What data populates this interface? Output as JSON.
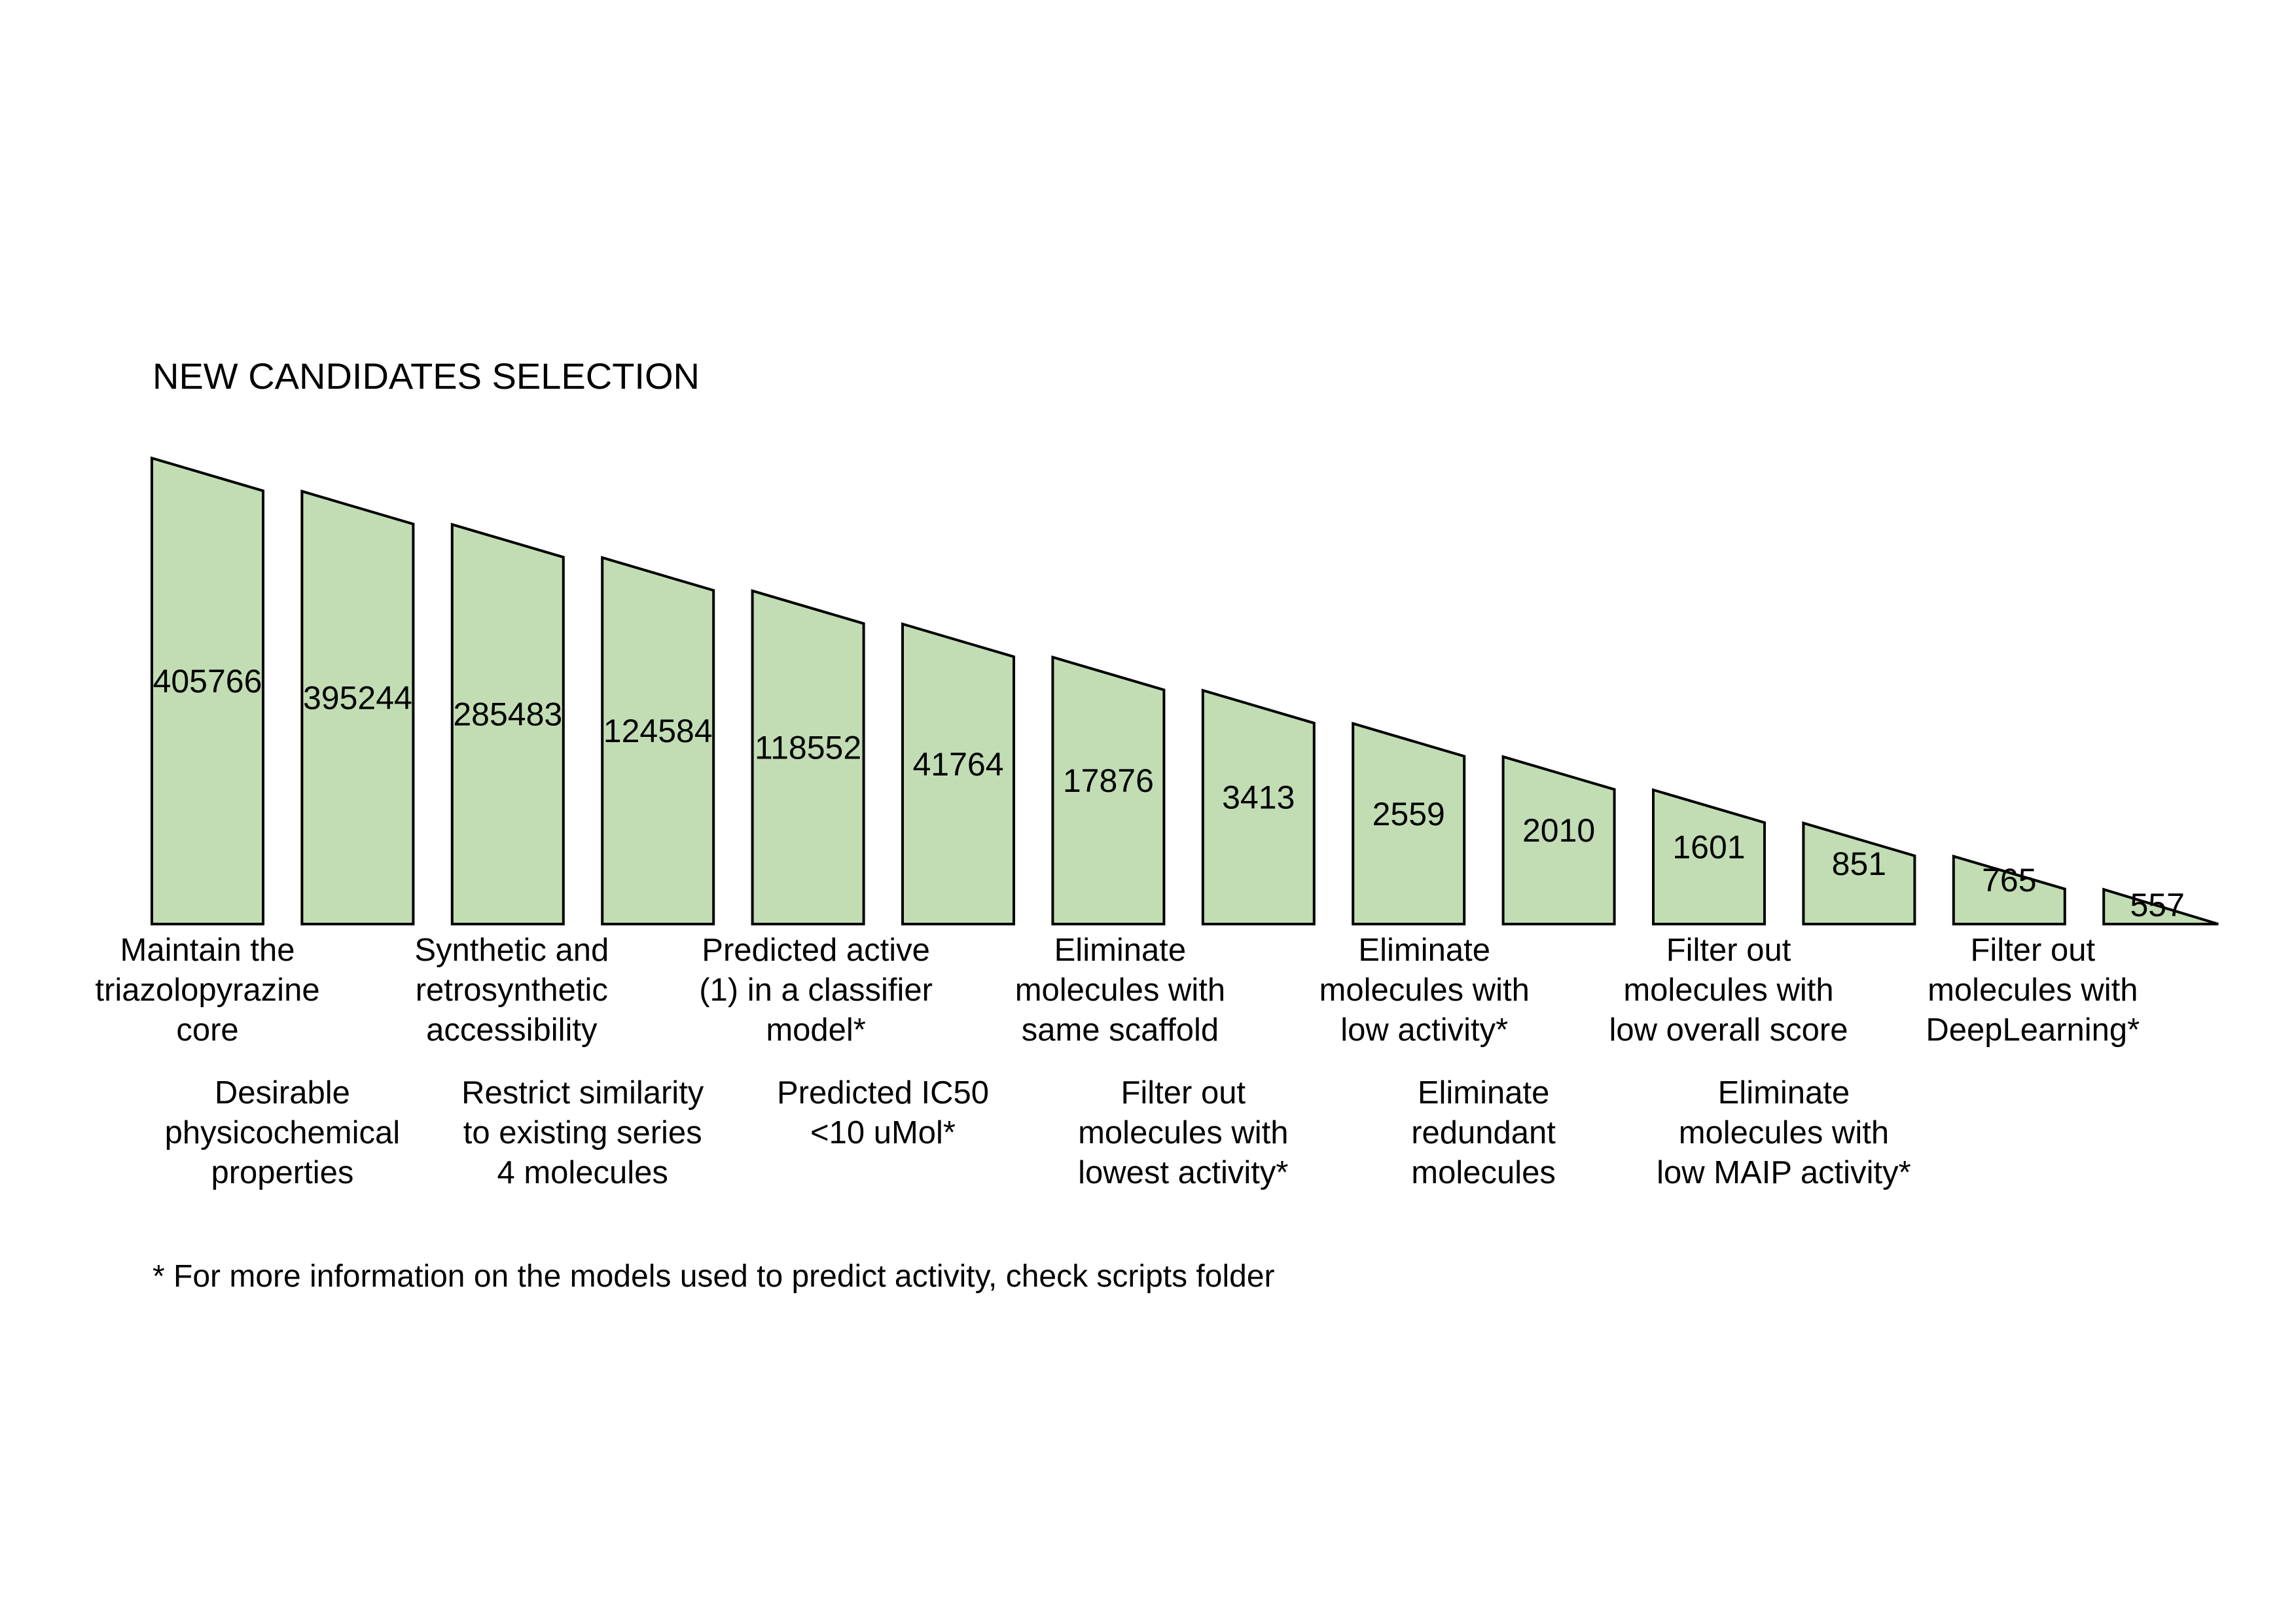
{
  "title": "NEW CANDIDATES SELECTION",
  "colors": {
    "bar_fill": "#c2ddb4",
    "bar_stroke": "#000000",
    "text": "#000000"
  },
  "stages": [
    {
      "count": "405766",
      "label": [
        "Maintain the",
        "triazolopyrazine",
        "core"
      ]
    },
    {
      "count": "395244",
      "label": [
        "Desirable",
        "physicochemical",
        "properties"
      ]
    },
    {
      "count": "285483",
      "label": [
        "Synthetic and",
        "retrosynthetic",
        "accessibility"
      ]
    },
    {
      "count": "124584",
      "label": [
        "Restrict similarity",
        "to existing series",
        "4 molecules"
      ]
    },
    {
      "count": "118552",
      "label": [
        "Predicted active",
        "(1) in a classifier",
        "model*"
      ]
    },
    {
      "count": "41764",
      "label": [
        "Predicted IC50",
        "<10 uMol*"
      ]
    },
    {
      "count": "17876",
      "label": [
        "Eliminate",
        "molecules with",
        "same scaffold"
      ]
    },
    {
      "count": "3413",
      "label": [
        "Filter out",
        "molecules with",
        "lowest activity*"
      ]
    },
    {
      "count": "2559",
      "label": [
        "Eliminate",
        "molecules with",
        "low activity*"
      ]
    },
    {
      "count": "2010",
      "label": [
        "Eliminate",
        "redundant",
        "molecules"
      ]
    },
    {
      "count": "1601",
      "label": [
        "Filter out",
        "molecules with",
        "low overall score"
      ]
    },
    {
      "count": "851",
      "label": [
        "Eliminate",
        "molecules with",
        "low MAIP activity*"
      ]
    },
    {
      "count": "765",
      "label": [
        "Filter out",
        "molecules with",
        "DeepLearning*"
      ]
    },
    {
      "count": "557",
      "label": []
    }
  ],
  "footnote": "* For more information on the models used to predict activity, check scripts folder"
}
